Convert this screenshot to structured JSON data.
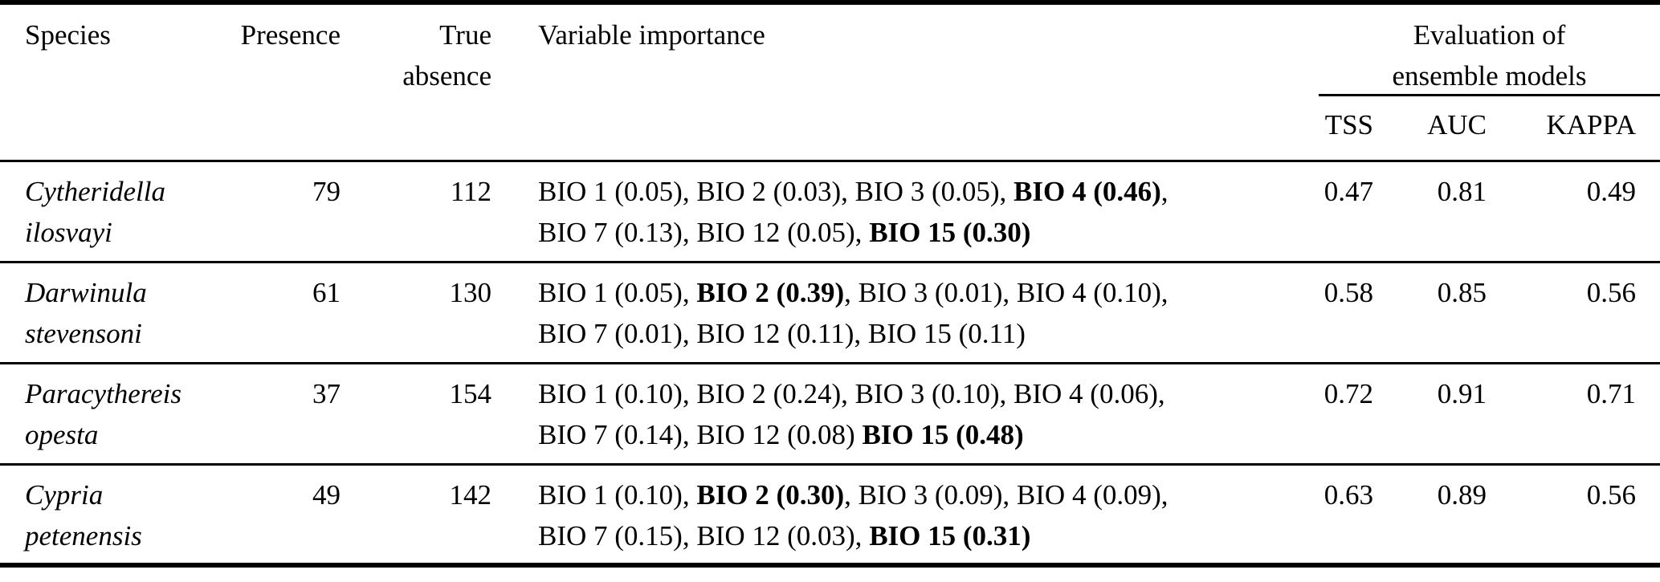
{
  "colors": {
    "text": "#000000",
    "background": "#ffffff",
    "rule": "#000000"
  },
  "table": {
    "headers": {
      "species": "Species",
      "presence": "Presence",
      "true_absence_line1": "True",
      "true_absence_line2": "absence",
      "variable_importance": "Variable importance",
      "evaluation_line1": "Evaluation of",
      "evaluation_line2": "ensemble models",
      "tss": "TSS",
      "auc": "AUC",
      "kappa": "KAPPA"
    },
    "rows": [
      {
        "species_line1": "Cytheridella",
        "species_line2": "ilosvayi",
        "presence": "79",
        "true_absence": "112",
        "variable_importance_lines": [
          [
            {
              "t": "BIO 1 (0.05), BIO 2 (0.03), BIO 3 (0.05), ",
              "b": false
            },
            {
              "t": "BIO 4 (0.46)",
              "b": true
            },
            {
              "t": ",",
              "b": false
            }
          ],
          [
            {
              "t": "BIO 7 (0.13), BIO 12 (0.05), ",
              "b": false
            },
            {
              "t": "BIO 15 (0.30)",
              "b": true
            }
          ]
        ],
        "tss": "0.47",
        "auc": "0.81",
        "kappa": "0.49"
      },
      {
        "species_line1": "Darwinula",
        "species_line2": "stevensoni",
        "presence": "61",
        "true_absence": "130",
        "variable_importance_lines": [
          [
            {
              "t": "BIO 1 (0.05), ",
              "b": false
            },
            {
              "t": "BIO 2 (0.39)",
              "b": true
            },
            {
              "t": ", BIO 3 (0.01), BIO 4 (0.10),",
              "b": false
            }
          ],
          [
            {
              "t": "BIO 7 (0.01), BIO 12 (0.11), BIO 15 (0.11)",
              "b": false
            }
          ]
        ],
        "tss": "0.58",
        "auc": "0.85",
        "kappa": "0.56"
      },
      {
        "species_line1": "Paracythereis",
        "species_line2": "opesta",
        "presence": "37",
        "true_absence": "154",
        "variable_importance_lines": [
          [
            {
              "t": "BIO 1 (0.10), BIO 2 (0.24), BIO 3 (0.10), BIO 4 (0.06),",
              "b": false
            }
          ],
          [
            {
              "t": "BIO 7 (0.14), BIO 12 (0.08) ",
              "b": false
            },
            {
              "t": "BIO 15 (0.48)",
              "b": true
            }
          ]
        ],
        "tss": "0.72",
        "auc": "0.91",
        "kappa": "0.71"
      },
      {
        "species_line1": "Cypria",
        "species_line2": "petenensis",
        "presence": "49",
        "true_absence": "142",
        "variable_importance_lines": [
          [
            {
              "t": "BIO 1 (0.10), ",
              "b": false
            },
            {
              "t": "BIO 2 (0.30)",
              "b": true
            },
            {
              "t": ", BIO 3 (0.09), BIO 4 (0.09),",
              "b": false
            }
          ],
          [
            {
              "t": "BIO 7 (0.15), BIO 12 (0.03), ",
              "b": false
            },
            {
              "t": "BIO 15 (0.31)",
              "b": true
            }
          ]
        ],
        "tss": "0.63",
        "auc": "0.89",
        "kappa": "0.56"
      }
    ]
  }
}
